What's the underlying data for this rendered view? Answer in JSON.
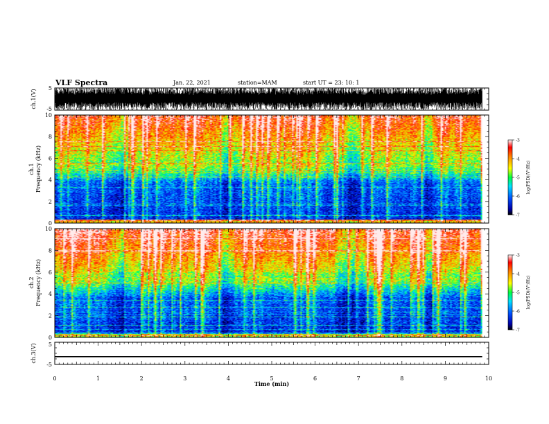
{
  "header": {
    "title": "VLF Spectra",
    "date": "Jan. 22, 2021",
    "station": "station=MAM",
    "start": "start  UT =   23: 10: 1"
  },
  "chart_data": [
    {
      "type": "line",
      "name": "ch1-waveform",
      "ylabel": "ch.1(V)",
      "ylim": [
        -5,
        5
      ],
      "yticks": [
        "5",
        "-5"
      ],
      "xlim": [
        0,
        10
      ],
      "description_values": "dense broadband waveform filling approximately -5 to 5 V"
    },
    {
      "type": "heatmap",
      "name": "ch1-spectrogram",
      "ylabel_line1": "ch.1",
      "ylabel_line2": "Frequency (kHz)",
      "ylim": [
        0,
        10
      ],
      "yticks": [
        "0",
        "2",
        "4",
        "6",
        "8",
        "10"
      ],
      "xlim": [
        0,
        10
      ],
      "data_end_min": 9.85,
      "colorbar": {
        "label": "log(PSD)(V²/Hz)",
        "range": [
          -7,
          -3
        ],
        "ticks": [
          "-3",
          "-4",
          "-5",
          "-6",
          "-7"
        ]
      }
    },
    {
      "type": "heatmap",
      "name": "ch2-spectrogram",
      "ylabel_line1": "ch.2",
      "ylabel_line2": "Frequency (kHz)",
      "ylim": [
        0,
        10
      ],
      "yticks": [
        "0",
        "2",
        "4",
        "6",
        "8",
        "10"
      ],
      "xlim": [
        0,
        10
      ],
      "data_end_min": 9.85,
      "colorbar": {
        "label": "log(PSD)(V²/Hz)",
        "range": [
          -7,
          -3
        ],
        "ticks": [
          "-3",
          "-4",
          "-5",
          "-6",
          "-7"
        ]
      }
    },
    {
      "type": "line",
      "name": "ch3-waveform",
      "ylabel": "ch.3(V)",
      "ylim": [
        -5,
        5
      ],
      "yticks": [
        "5",
        "-5"
      ],
      "xlim": [
        0,
        10
      ],
      "xlabel": "Time (min)",
      "xticks": [
        "0",
        "1",
        "2",
        "3",
        "4",
        "5",
        "6",
        "7",
        "8",
        "9",
        "10"
      ],
      "constant_value": -1.5
    }
  ]
}
